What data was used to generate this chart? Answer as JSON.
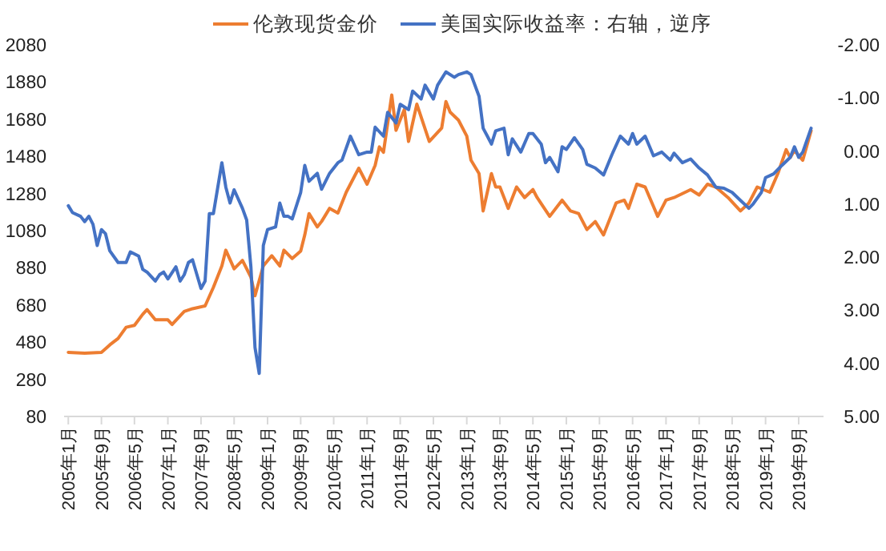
{
  "chart_data": {
    "type": "line",
    "legend": "top",
    "grid": false,
    "line_style": "solid",
    "marker": "none",
    "xlim": [
      "2004-12",
      "2020-03"
    ],
    "xticks": [
      {
        "value": "2005-01",
        "label": "2005年1月"
      },
      {
        "value": "2005-09",
        "label": "2005年9月"
      },
      {
        "value": "2006-05",
        "label": "2006年5月"
      },
      {
        "value": "2007-01",
        "label": "2007年1月"
      },
      {
        "value": "2007-09",
        "label": "2007年9月"
      },
      {
        "value": "2008-05",
        "label": "2008年5月"
      },
      {
        "value": "2009-01",
        "label": "2009年1月"
      },
      {
        "value": "2009-09",
        "label": "2009年9月"
      },
      {
        "value": "2010-05",
        "label": "2010年5月"
      },
      {
        "value": "2011-01",
        "label": "2011年1月"
      },
      {
        "value": "2011-09",
        "label": "2011年9月"
      },
      {
        "value": "2012-05",
        "label": "2012年5月"
      },
      {
        "value": "2013-01",
        "label": "2013年1月"
      },
      {
        "value": "2013-09",
        "label": "2013年9月"
      },
      {
        "value": "2014-05",
        "label": "2014年5月"
      },
      {
        "value": "2015-01",
        "label": "2015年1月"
      },
      {
        "value": "2015-09",
        "label": "2015年9月"
      },
      {
        "value": "2016-05",
        "label": "2016年5月"
      },
      {
        "value": "2017-01",
        "label": "2017年1月"
      },
      {
        "value": "2017-09",
        "label": "2017年9月"
      },
      {
        "value": "2018-05",
        "label": "2018年5月"
      },
      {
        "value": "2019-01",
        "label": "2019年1月"
      },
      {
        "value": "2019-09",
        "label": "2019年9月"
      }
    ],
    "ylim": [
      80,
      2080
    ],
    "yticks": [
      80,
      280,
      480,
      680,
      880,
      1080,
      1280,
      1480,
      1680,
      1880,
      2080
    ],
    "y2lim": [
      5,
      -2
    ],
    "y2ticks": [
      {
        "value": -2,
        "label": "-2.00"
      },
      {
        "value": -1,
        "label": "-1.00"
      },
      {
        "value": 0,
        "label": "0.00"
      },
      {
        "value": 1,
        "label": "1.00"
      },
      {
        "value": 2,
        "label": "2.00"
      },
      {
        "value": 3,
        "label": "3.00"
      },
      {
        "value": 4,
        "label": "4.00"
      },
      {
        "value": 5,
        "label": "5.00"
      }
    ],
    "series": [
      {
        "name": "伦敦现货金价",
        "color": "#ed7d31",
        "x": [
          "2005-01",
          "2005-05",
          "2005-09",
          "2005-11",
          "2006-01",
          "2006-03",
          "2006-05",
          "2006-07",
          "2006-08",
          "2006-10",
          "2007-01",
          "2007-02",
          "2007-05",
          "2007-07",
          "2007-10",
          "2007-12",
          "2008-02",
          "2008-03",
          "2008-05",
          "2008-07",
          "2008-09",
          "2008-10",
          "2008-12",
          "2009-02",
          "2009-04",
          "2009-05",
          "2009-07",
          "2009-09",
          "2009-10",
          "2009-11",
          "2010-01",
          "2010-02",
          "2010-04",
          "2010-06",
          "2010-08",
          "2010-10",
          "2010-11",
          "2011-01",
          "2011-03",
          "2011-04",
          "2011-05",
          "2011-07",
          "2011-08",
          "2011-10",
          "2011-11",
          "2012-01",
          "2012-04",
          "2012-07",
          "2012-08",
          "2012-09",
          "2012-11",
          "2013-01",
          "2013-02",
          "2013-04",
          "2013-05",
          "2013-07",
          "2013-08",
          "2013-09",
          "2013-11",
          "2014-01",
          "2014-03",
          "2014-05",
          "2014-06",
          "2014-09",
          "2014-12",
          "2015-02",
          "2015-04",
          "2015-06",
          "2015-08",
          "2015-10",
          "2016-01",
          "2016-03",
          "2016-04",
          "2016-06",
          "2016-08",
          "2016-11",
          "2017-01",
          "2017-03",
          "2017-07",
          "2017-09",
          "2017-11",
          "2018-01",
          "2018-04",
          "2018-07",
          "2018-09",
          "2018-11",
          "2019-02",
          "2019-04",
          "2019-06",
          "2019-07",
          "2019-08",
          "2019-10",
          "2019-12"
        ],
        "values": [
          425,
          420,
          425,
          465,
          500,
          560,
          570,
          630,
          655,
          600,
          600,
          575,
          645,
          660,
          675,
          775,
          890,
          975,
          875,
          920,
          830,
          730,
          890,
          945,
          890,
          975,
          930,
          970,
          1057,
          1172,
          1100,
          1129,
          1200,
          1175,
          1287,
          1373,
          1416,
          1330,
          1431,
          1531,
          1502,
          1810,
          1620,
          1732,
          1560,
          1761,
          1560,
          1632,
          1775,
          1718,
          1675,
          1589,
          1459,
          1387,
          1186,
          1387,
          1315,
          1315,
          1200,
          1315,
          1258,
          1301,
          1258,
          1157,
          1244,
          1186,
          1172,
          1086,
          1129,
          1057,
          1229,
          1244,
          1200,
          1330,
          1315,
          1157,
          1244,
          1258,
          1301,
          1272,
          1330,
          1315,
          1258,
          1186,
          1229,
          1315,
          1287,
          1387,
          1516,
          1474,
          1511,
          1459,
          1618
        ]
      },
      {
        "name": "美国实际收益率：右轴，逆序",
        "color": "#4472c4",
        "axis": "y2",
        "x": [
          "2005-01",
          "2005-02",
          "2005-04",
          "2005-05",
          "2005-06",
          "2005-07",
          "2005-08",
          "2005-09",
          "2005-10",
          "2005-11",
          "2006-01",
          "2006-03",
          "2006-04",
          "2006-06",
          "2006-07",
          "2006-08",
          "2006-10",
          "2006-11",
          "2006-12",
          "2007-01",
          "2007-03",
          "2007-04",
          "2007-05",
          "2007-06",
          "2007-07",
          "2007-09",
          "2007-10",
          "2007-11",
          "2007-12",
          "2008-02",
          "2008-03",
          "2008-04",
          "2008-05",
          "2008-07",
          "2008-08",
          "2008-09",
          "2008-10",
          "2008-11",
          "2008-12",
          "2009-01",
          "2009-03",
          "2009-04",
          "2009-05",
          "2009-06",
          "2009-07",
          "2009-09",
          "2009-10",
          "2009-11",
          "2010-01",
          "2010-02",
          "2010-04",
          "2010-06",
          "2010-07",
          "2010-09",
          "2010-11",
          "2011-01",
          "2011-02",
          "2011-03",
          "2011-05",
          "2011-06",
          "2011-08",
          "2011-09",
          "2011-11",
          "2011-12",
          "2012-02",
          "2012-03",
          "2012-05",
          "2012-06",
          "2012-08",
          "2012-10",
          "2012-11",
          "2013-01",
          "2013-02",
          "2013-04",
          "2013-05",
          "2013-06",
          "2013-07",
          "2013-08",
          "2013-10",
          "2013-11",
          "2013-12",
          "2014-02",
          "2014-04",
          "2014-05",
          "2014-07",
          "2014-08",
          "2014-09",
          "2014-11",
          "2014-12",
          "2015-01",
          "2015-03",
          "2015-05",
          "2015-06",
          "2015-08",
          "2015-10",
          "2015-12",
          "2016-02",
          "2016-04",
          "2016-05",
          "2016-06",
          "2016-08",
          "2016-10",
          "2016-12",
          "2017-02",
          "2017-03",
          "2017-05",
          "2017-07",
          "2017-09",
          "2017-11",
          "2018-01",
          "2018-03",
          "2018-05",
          "2018-07",
          "2018-09",
          "2018-10",
          "2018-12",
          "2019-01",
          "2019-03",
          "2019-05",
          "2019-07",
          "2019-08",
          "2019-09",
          "2019-10",
          "2019-12"
        ],
        "values": [
          1.03,
          1.16,
          1.23,
          1.33,
          1.23,
          1.38,
          1.78,
          1.48,
          1.56,
          1.88,
          2.1,
          2.1,
          1.9,
          1.98,
          2.23,
          2.28,
          2.45,
          2.33,
          2.28,
          2.41,
          2.18,
          2.45,
          2.33,
          2.1,
          2.05,
          2.59,
          2.45,
          1.18,
          1.18,
          0.22,
          0.68,
          0.98,
          0.73,
          1.08,
          1.3,
          2.18,
          3.7,
          4.19,
          1.78,
          1.48,
          1.43,
          0.98,
          1.23,
          1.23,
          1.28,
          0.78,
          0.27,
          0.57,
          0.42,
          0.72,
          0.42,
          0.22,
          0.17,
          -0.28,
          0.07,
          0.02,
          0.02,
          -0.45,
          -0.28,
          -0.73,
          -0.53,
          -0.88,
          -0.78,
          -1.13,
          -0.98,
          -1.24,
          -0.98,
          -1.24,
          -1.49,
          -1.39,
          -1.44,
          -1.49,
          -1.44,
          -1.03,
          -0.43,
          -0.28,
          -0.13,
          -0.38,
          -0.43,
          0.07,
          -0.23,
          0.02,
          -0.33,
          -0.33,
          -0.13,
          0.22,
          0.12,
          0.39,
          -0.08,
          -0.03,
          -0.25,
          -0.03,
          0.25,
          0.32,
          0.45,
          0.07,
          -0.28,
          -0.13,
          -0.33,
          -0.13,
          -0.28,
          0.09,
          0.02,
          0.17,
          0.04,
          0.22,
          0.15,
          0.32,
          0.45,
          0.68,
          0.7,
          0.78,
          0.93,
          1.08,
          1.0,
          0.78,
          0.5,
          0.43,
          0.27,
          0.12,
          -0.08,
          0.12,
          0.02,
          -0.43
        ]
      }
    ]
  }
}
